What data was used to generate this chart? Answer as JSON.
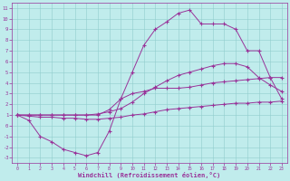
{
  "bg_color": "#c0ecec",
  "grid_color": "#90cccc",
  "line_color": "#993399",
  "xlabel": "Windchill (Refroidissement éolien,°C)",
  "xlim": [
    -0.5,
    23.5
  ],
  "ylim": [
    -3.5,
    11.5
  ],
  "x_ticks": [
    0,
    1,
    2,
    3,
    4,
    5,
    6,
    7,
    8,
    9,
    10,
    11,
    12,
    13,
    14,
    15,
    16,
    17,
    18,
    19,
    20,
    21,
    22,
    23
  ],
  "y_ticks": [
    -3,
    -2,
    -1,
    0,
    1,
    2,
    3,
    4,
    5,
    6,
    7,
    8,
    9,
    10,
    11
  ],
  "line1": {
    "x": [
      0,
      1,
      2,
      3,
      4,
      5,
      6,
      7,
      8,
      9,
      10,
      11,
      12,
      13,
      14,
      15,
      16,
      17,
      18,
      19,
      20,
      21,
      22,
      23
    ],
    "y": [
      1.0,
      0.9,
      0.8,
      0.8,
      0.7,
      0.7,
      0.6,
      0.6,
      0.7,
      0.8,
      1.0,
      1.1,
      1.3,
      1.5,
      1.6,
      1.7,
      1.8,
      1.9,
      2.0,
      2.1,
      2.1,
      2.2,
      2.2,
      2.3
    ]
  },
  "line2": {
    "x": [
      0,
      1,
      2,
      3,
      4,
      5,
      6,
      7,
      8,
      9,
      10,
      11,
      12,
      13,
      14,
      15,
      16,
      17,
      18,
      19,
      20,
      21,
      22,
      23
    ],
    "y": [
      1.0,
      1.0,
      1.0,
      1.0,
      1.0,
      1.0,
      1.0,
      1.1,
      1.3,
      1.6,
      2.2,
      3.0,
      3.6,
      4.2,
      4.7,
      5.0,
      5.3,
      5.6,
      5.8,
      5.8,
      5.5,
      4.5,
      3.8,
      3.2
    ]
  },
  "line3": {
    "x": [
      0,
      1,
      2,
      3,
      4,
      5,
      6,
      7,
      8,
      9,
      10,
      11,
      12,
      13,
      14,
      15,
      16,
      17,
      18,
      19,
      20,
      21,
      22,
      23
    ],
    "y": [
      1.0,
      1.0,
      1.0,
      1.0,
      1.0,
      1.0,
      1.0,
      1.0,
      1.5,
      2.5,
      5.0,
      7.5,
      9.0,
      9.7,
      10.5,
      10.8,
      9.5,
      9.5,
      9.5,
      9.0,
      7.0,
      7.0,
      4.5,
      2.5
    ]
  },
  "line4": {
    "x": [
      0,
      1,
      2,
      3,
      4,
      5,
      6,
      7,
      8,
      9,
      10,
      11,
      12,
      13,
      14,
      15,
      16,
      17,
      18,
      19,
      20,
      21,
      22,
      23
    ],
    "y": [
      1.0,
      0.5,
      -1.0,
      -1.5,
      -2.2,
      -2.5,
      -2.8,
      -2.5,
      -0.5,
      2.5,
      3.0,
      3.2,
      3.5,
      3.5,
      3.5,
      3.6,
      3.8,
      4.0,
      4.1,
      4.2,
      4.3,
      4.4,
      4.5,
      4.5
    ]
  }
}
